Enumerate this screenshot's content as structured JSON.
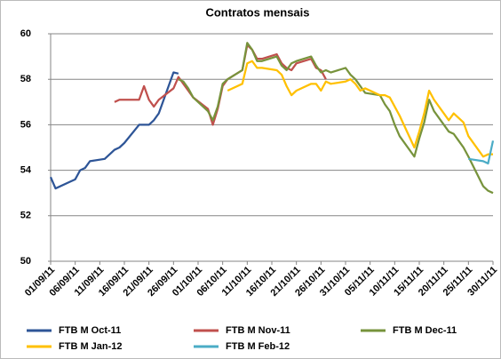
{
  "chart_data": {
    "type": "line",
    "title": "Contratos mensais",
    "xlim": [
      "2011-09-01",
      "2011-11-30"
    ],
    "xticks": [
      {
        "value": "2011-09-01",
        "label": "01/09/11"
      },
      {
        "value": "2011-09-06",
        "label": "06/09/11"
      },
      {
        "value": "2011-09-11",
        "label": "11/09/11"
      },
      {
        "value": "2011-09-16",
        "label": "16/09/11"
      },
      {
        "value": "2011-09-21",
        "label": "21/09/11"
      },
      {
        "value": "2011-09-26",
        "label": "26/09/11"
      },
      {
        "value": "2011-10-01",
        "label": "01/10/11"
      },
      {
        "value": "2011-10-06",
        "label": "06/10/11"
      },
      {
        "value": "2011-10-11",
        "label": "11/10/11"
      },
      {
        "value": "2011-10-16",
        "label": "16/10/11"
      },
      {
        "value": "2011-10-21",
        "label": "21/10/11"
      },
      {
        "value": "2011-10-26",
        "label": "26/10/11"
      },
      {
        "value": "2011-10-31",
        "label": "31/10/11"
      },
      {
        "value": "2011-11-05",
        "label": "05/11/11"
      },
      {
        "value": "2011-11-10",
        "label": "10/11/11"
      },
      {
        "value": "2011-11-15",
        "label": "15/11/11"
      },
      {
        "value": "2011-11-20",
        "label": "20/11/11"
      },
      {
        "value": "2011-11-25",
        "label": "25/11/11"
      },
      {
        "value": "2011-11-30",
        "label": "30/11/11"
      }
    ],
    "ylim": [
      50,
      60
    ],
    "yticks": [
      50,
      52,
      54,
      56,
      58,
      60
    ],
    "grid": true,
    "legend": "bottom",
    "series": [
      {
        "name": "FTB M Oct-11",
        "color": "#2e5597",
        "x": [
          "2011-09-01",
          "2011-09-02",
          "2011-09-05",
          "2011-09-06",
          "2011-09-07",
          "2011-09-08",
          "2011-09-09",
          "2011-09-12",
          "2011-09-13",
          "2011-09-14",
          "2011-09-15",
          "2011-09-16",
          "2011-09-19",
          "2011-09-20",
          "2011-09-21",
          "2011-09-22",
          "2011-09-23",
          "2011-09-26",
          "2011-09-27"
        ],
        "values": [
          53.7,
          53.2,
          53.5,
          53.6,
          54.0,
          54.1,
          54.4,
          54.5,
          54.7,
          54.9,
          55.0,
          55.2,
          56.0,
          56.0,
          56.0,
          56.2,
          56.5,
          58.3,
          58.25
        ]
      },
      {
        "name": "FTB M Nov-11",
        "color": "#c0504d",
        "x": [
          "2011-09-14",
          "2011-09-15",
          "2011-09-16",
          "2011-09-19",
          "2011-09-20",
          "2011-09-21",
          "2011-09-22",
          "2011-09-23",
          "2011-09-26",
          "2011-09-27",
          "2011-09-28",
          "2011-09-29",
          "2011-09-30",
          "2011-10-03",
          "2011-10-04",
          "2011-10-05",
          "2011-10-06",
          "2011-10-07",
          "2011-10-10",
          "2011-10-11",
          "2011-10-12",
          "2011-10-13",
          "2011-10-14",
          "2011-10-17",
          "2011-10-18",
          "2011-10-19",
          "2011-10-20",
          "2011-10-21",
          "2011-10-24",
          "2011-10-25",
          "2011-10-26",
          "2011-10-27"
        ],
        "values": [
          57.0,
          57.1,
          57.1,
          57.1,
          57.7,
          57.1,
          56.8,
          57.1,
          57.6,
          58.1,
          57.8,
          57.5,
          57.2,
          56.7,
          56.0,
          56.7,
          57.7,
          58.0,
          58.4,
          59.5,
          59.3,
          58.9,
          58.9,
          59.1,
          58.7,
          58.5,
          58.4,
          58.7,
          58.9,
          58.5,
          58.4,
          58.0
        ]
      },
      {
        "name": "FTB M Dec-11",
        "color": "#77933c",
        "x": [
          "2011-09-27",
          "2011-09-28",
          "2011-09-29",
          "2011-09-30",
          "2011-10-03",
          "2011-10-04",
          "2011-10-05",
          "2011-10-06",
          "2011-10-07",
          "2011-10-10",
          "2011-10-11",
          "2011-10-12",
          "2011-10-13",
          "2011-10-14",
          "2011-10-17",
          "2011-10-18",
          "2011-10-19",
          "2011-10-20",
          "2011-10-21",
          "2011-10-24",
          "2011-10-25",
          "2011-10-26",
          "2011-10-27",
          "2011-10-28",
          "2011-10-31",
          "2011-11-01",
          "2011-11-02",
          "2011-11-03",
          "2011-11-04",
          "2011-11-07",
          "2011-11-08",
          "2011-11-09",
          "2011-11-10",
          "2011-11-11",
          "2011-11-14",
          "2011-11-15",
          "2011-11-16",
          "2011-11-17",
          "2011-11-18",
          "2011-11-21",
          "2011-11-22",
          "2011-11-23",
          "2011-11-24",
          "2011-11-25",
          "2011-11-28",
          "2011-11-29",
          "2011-11-30"
        ],
        "values": [
          58.0,
          57.9,
          57.6,
          57.2,
          56.6,
          56.2,
          56.8,
          57.8,
          58.0,
          58.4,
          59.6,
          59.3,
          58.8,
          58.8,
          59.0,
          58.6,
          58.4,
          58.7,
          58.8,
          59.0,
          58.6,
          58.3,
          58.4,
          58.3,
          58.5,
          58.2,
          58.0,
          57.7,
          57.4,
          57.3,
          56.9,
          56.6,
          56.0,
          55.5,
          54.6,
          55.4,
          56.1,
          57.1,
          56.6,
          55.7,
          55.6,
          55.3,
          55.0,
          54.6,
          53.3,
          53.1,
          53.0
        ]
      },
      {
        "name": "FTB M Jan-12",
        "color": "#ffc000",
        "x": [
          "2011-10-07",
          "2011-10-10",
          "2011-10-11",
          "2011-10-12",
          "2011-10-13",
          "2011-10-14",
          "2011-10-17",
          "2011-10-18",
          "2011-10-19",
          "2011-10-20",
          "2011-10-21",
          "2011-10-24",
          "2011-10-25",
          "2011-10-26",
          "2011-10-27",
          "2011-10-28",
          "2011-10-31",
          "2011-11-01",
          "2011-11-02",
          "2011-11-03",
          "2011-11-04",
          "2011-11-07",
          "2011-11-08",
          "2011-11-09",
          "2011-11-10",
          "2011-11-11",
          "2011-11-14",
          "2011-11-15",
          "2011-11-16",
          "2011-11-17",
          "2011-11-18",
          "2011-11-21",
          "2011-11-22",
          "2011-11-23",
          "2011-11-24",
          "2011-11-25",
          "2011-11-28",
          "2011-11-29",
          "2011-11-30"
        ],
        "values": [
          57.5,
          57.8,
          58.7,
          58.8,
          58.5,
          58.5,
          58.4,
          58.2,
          57.7,
          57.3,
          57.5,
          57.8,
          57.8,
          57.5,
          57.9,
          57.8,
          57.9,
          58.0,
          57.8,
          57.5,
          57.6,
          57.3,
          57.3,
          57.2,
          56.8,
          56.4,
          55.0,
          55.7,
          56.5,
          57.5,
          57.1,
          56.2,
          56.5,
          56.3,
          56.1,
          55.5,
          54.6,
          54.7,
          54.7
        ]
      },
      {
        "name": "FTB M Feb-12",
        "color": "#4bacc6",
        "x": [
          "2011-11-25",
          "2011-11-28",
          "2011-11-29",
          "2011-11-30"
        ],
        "values": [
          54.5,
          54.4,
          54.3,
          55.3
        ]
      }
    ]
  }
}
